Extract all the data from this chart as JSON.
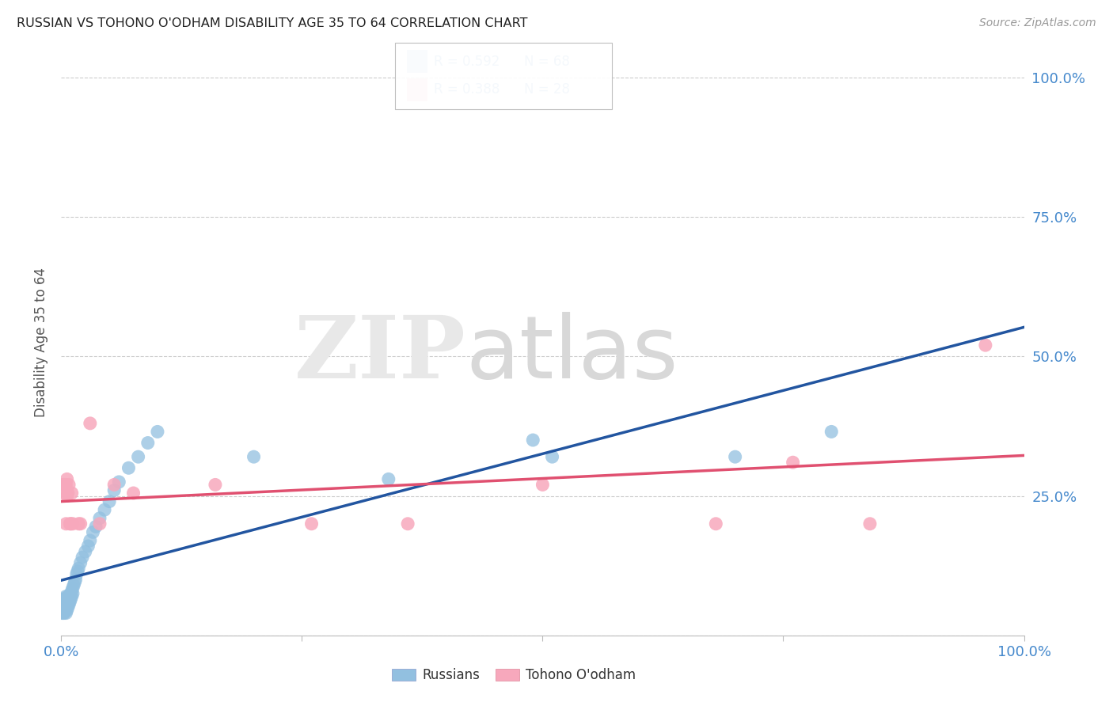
{
  "title": "RUSSIAN VS TOHONO O'ODHAM DISABILITY AGE 35 TO 64 CORRELATION CHART",
  "source": "Source: ZipAtlas.com",
  "ylabel": "Disability Age 35 to 64",
  "russian_R": 0.592,
  "russian_N": 68,
  "tohono_R": 0.388,
  "tohono_N": 28,
  "russian_color": "#92c0e0",
  "tohono_color": "#f7a8bc",
  "russian_line_color": "#2255a0",
  "tohono_line_color": "#e05070",
  "background_color": "#ffffff",
  "grid_color": "#cccccc",
  "axis_label_color": "#4488cc",
  "russian_x": [
    0.001,
    0.001,
    0.001,
    0.002,
    0.002,
    0.002,
    0.002,
    0.002,
    0.003,
    0.003,
    0.003,
    0.003,
    0.003,
    0.003,
    0.004,
    0.004,
    0.004,
    0.004,
    0.005,
    0.005,
    0.005,
    0.005,
    0.005,
    0.006,
    0.006,
    0.006,
    0.007,
    0.007,
    0.007,
    0.008,
    0.008,
    0.008,
    0.009,
    0.009,
    0.01,
    0.01,
    0.011,
    0.011,
    0.012,
    0.012,
    0.013,
    0.014,
    0.015,
    0.016,
    0.017,
    0.018,
    0.02,
    0.022,
    0.025,
    0.028,
    0.03,
    0.033,
    0.036,
    0.04,
    0.045,
    0.05,
    0.055,
    0.06,
    0.07,
    0.08,
    0.09,
    0.1,
    0.2,
    0.34,
    0.49,
    0.51,
    0.7,
    0.8
  ],
  "russian_y": [
    0.04,
    0.05,
    0.06,
    0.04,
    0.05,
    0.055,
    0.06,
    0.065,
    0.04,
    0.045,
    0.05,
    0.055,
    0.06,
    0.065,
    0.045,
    0.05,
    0.055,
    0.06,
    0.04,
    0.05,
    0.055,
    0.06,
    0.07,
    0.045,
    0.055,
    0.065,
    0.05,
    0.06,
    0.07,
    0.055,
    0.06,
    0.07,
    0.06,
    0.07,
    0.065,
    0.075,
    0.07,
    0.08,
    0.075,
    0.085,
    0.09,
    0.095,
    0.1,
    0.11,
    0.115,
    0.12,
    0.13,
    0.14,
    0.15,
    0.16,
    0.17,
    0.185,
    0.195,
    0.21,
    0.225,
    0.24,
    0.26,
    0.275,
    0.3,
    0.32,
    0.345,
    0.365,
    0.32,
    0.28,
    0.35,
    0.32,
    0.32,
    0.365
  ],
  "tohono_x": [
    0.002,
    0.003,
    0.004,
    0.004,
    0.005,
    0.005,
    0.006,
    0.006,
    0.007,
    0.008,
    0.009,
    0.01,
    0.011,
    0.012,
    0.018,
    0.02,
    0.03,
    0.04,
    0.055,
    0.075,
    0.16,
    0.26,
    0.36,
    0.5,
    0.68,
    0.76,
    0.84,
    0.96
  ],
  "tohono_y": [
    0.27,
    0.27,
    0.255,
    0.27,
    0.27,
    0.2,
    0.25,
    0.28,
    0.255,
    0.27,
    0.2,
    0.2,
    0.255,
    0.2,
    0.2,
    0.2,
    0.38,
    0.2,
    0.27,
    0.255,
    0.27,
    0.2,
    0.2,
    0.27,
    0.2,
    0.31,
    0.2,
    0.52
  ],
  "xlim": [
    0.0,
    1.0
  ],
  "ylim": [
    0.0,
    1.05
  ],
  "dashed_line_start_x": 0.42,
  "dashed_line_end_x": 1.0
}
